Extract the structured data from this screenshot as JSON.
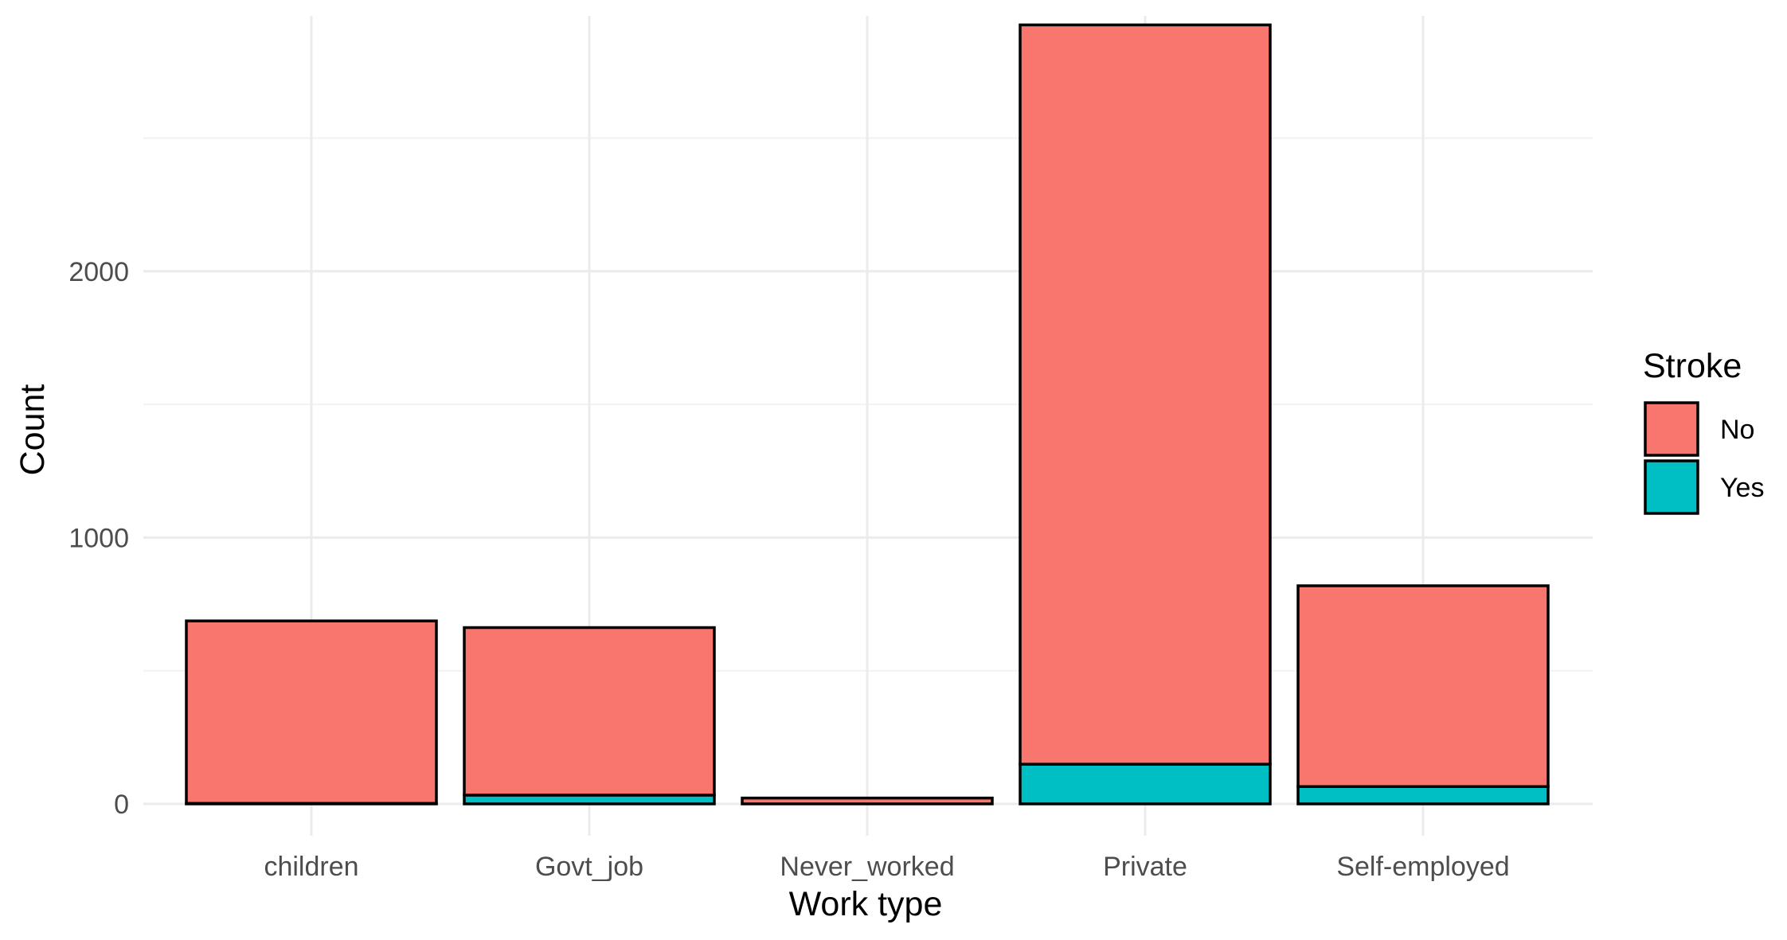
{
  "chart_data": {
    "type": "bar",
    "stacked": true,
    "title": "",
    "xlabel": "Work type",
    "ylabel": "Count",
    "categories": [
      "children",
      "Govt_job",
      "Never_worked",
      "Private",
      "Self-employed"
    ],
    "series": [
      {
        "name": "No",
        "color": "#F8766D",
        "values": [
          685,
          629,
          22,
          2776,
          754
        ]
      },
      {
        "name": "Yes",
        "color": "#00BFC4",
        "values": [
          2,
          33,
          0,
          149,
          65
        ]
      }
    ],
    "ylim": [
      0,
      2960
    ],
    "yticks": [
      0,
      1000,
      2000
    ],
    "ytick_labels": [
      "0",
      "1000",
      "2000"
    ],
    "grid": true,
    "legend": {
      "title": "Stroke",
      "position": "right",
      "items": [
        "No",
        "Yes"
      ]
    }
  }
}
